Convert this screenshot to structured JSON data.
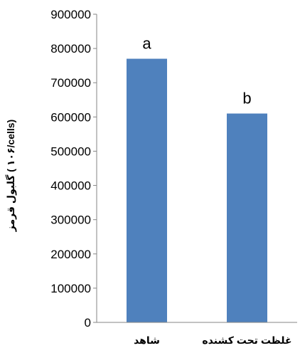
{
  "chart_data": {
    "type": "bar",
    "title": "",
    "xlabel": "",
    "ylabel": "گلبول قرمز ( ۱۰۶/cells)",
    "categories": [
      "شاهد",
      "غلظت تحت کشنده"
    ],
    "values": [
      770000,
      610000
    ],
    "annotations": [
      "a",
      "b"
    ],
    "ylim": [
      0,
      900000
    ],
    "yticks": [
      0,
      100000,
      200000,
      300000,
      400000,
      500000,
      600000,
      700000,
      800000,
      900000
    ],
    "bar_color": "#4f81bd",
    "grid": false,
    "legend": "none"
  }
}
